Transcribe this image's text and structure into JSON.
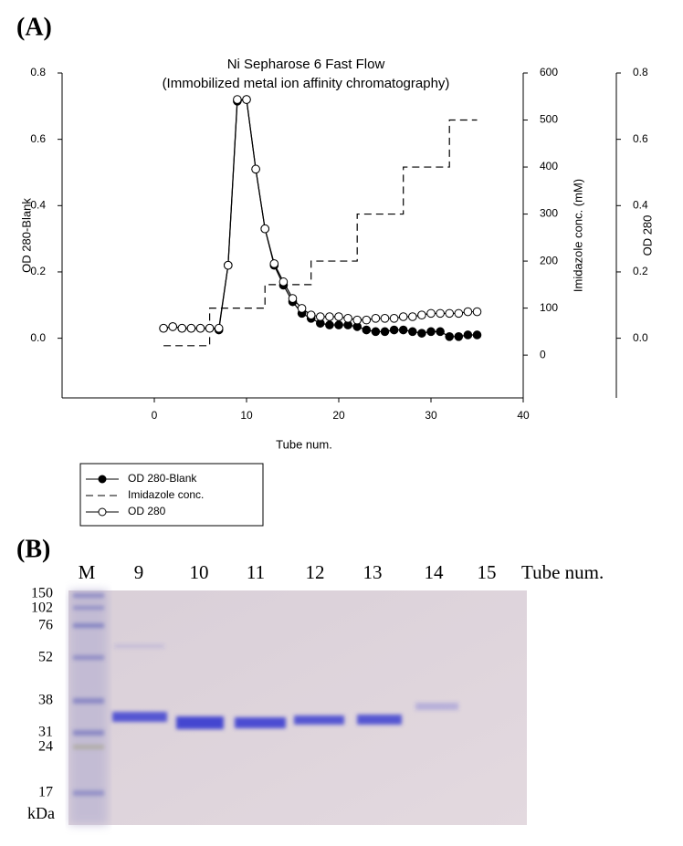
{
  "figure": {
    "panel_a": "(A)",
    "panel_b": "(B)"
  },
  "chart_data": {
    "type": "line",
    "title": "Ni Sepharose 6 Fast Flow",
    "subtitle": "(Immobilized metal ion affinity chromatography)",
    "x_label": "Tube num.",
    "y_label": "OD 280-Blank",
    "y2_label": "Imidazole conc. (mM)",
    "y3_label": "OD 280",
    "xlim": [
      -10,
      40
    ],
    "xticks": [
      0,
      10,
      20,
      30,
      40
    ],
    "ylim": [
      -0.18,
      0.8
    ],
    "yticks": [
      {
        "value": 0,
        "label": "0.0"
      },
      0.2,
      0.4,
      0.6,
      0.8
    ],
    "y2lim": [
      -91,
      600
    ],
    "y2ticks": [
      0,
      100,
      200,
      300,
      400,
      500,
      600
    ],
    "y3lim": [
      -0.18,
      0.8
    ],
    "y3ticks": [
      {
        "value": 0,
        "label": "0.0"
      },
      0.2,
      0.4,
      0.6,
      0.8
    ],
    "x": [
      1,
      2,
      3,
      4,
      5,
      6,
      7,
      8,
      9,
      10,
      11,
      12,
      13,
      14,
      15,
      16,
      17,
      18,
      19,
      20,
      21,
      22,
      23,
      24,
      25,
      26,
      27,
      28,
      29,
      30,
      31,
      32,
      33,
      34,
      35
    ],
    "series": [
      {
        "name": "OD 280-Blank",
        "color": "#000000",
        "marker": "filled",
        "dash": false,
        "values": [
          0.03,
          0.035,
          0.03,
          0.03,
          0.03,
          0.03,
          0.025,
          0.22,
          0.715,
          0.72,
          0.51,
          0.33,
          0.22,
          0.16,
          0.11,
          0.075,
          0.06,
          0.045,
          0.04,
          0.04,
          0.04,
          0.035,
          0.025,
          0.02,
          0.02,
          0.025,
          0.025,
          0.02,
          0.015,
          0.02,
          0.02,
          0.005,
          0.005,
          0.01,
          0.01
        ]
      },
      {
        "name": "Imidazole conc.",
        "color": "#000000",
        "marker": null,
        "dash": true,
        "axis": "y2",
        "x": [
          1,
          6,
          6,
          12,
          12,
          17,
          17,
          22,
          22,
          27,
          27,
          32,
          32,
          35
        ],
        "values": [
          20,
          20,
          100,
          100,
          150,
          150,
          200,
          200,
          300,
          300,
          400,
          400,
          500,
          500
        ]
      },
      {
        "name": "OD 280",
        "color": "#000000",
        "marker": "open",
        "dash": false,
        "axis": "y3",
        "values": [
          0.03,
          0.035,
          0.03,
          0.03,
          0.03,
          0.03,
          0.03,
          0.22,
          0.72,
          0.72,
          0.51,
          0.33,
          0.225,
          0.17,
          0.12,
          0.09,
          0.07,
          0.065,
          0.065,
          0.065,
          0.06,
          0.055,
          0.055,
          0.06,
          0.06,
          0.06,
          0.065,
          0.065,
          0.07,
          0.075,
          0.075,
          0.075,
          0.075,
          0.08,
          0.08
        ]
      }
    ]
  },
  "gel": {
    "lanes": [
      "M",
      "9",
      "10",
      "11",
      "12",
      "13",
      "14",
      "15"
    ],
    "lane_axis_label": "Tube num.",
    "markers": [
      150,
      102,
      76,
      52,
      38,
      31,
      24,
      17
    ],
    "unit": "kDa"
  }
}
